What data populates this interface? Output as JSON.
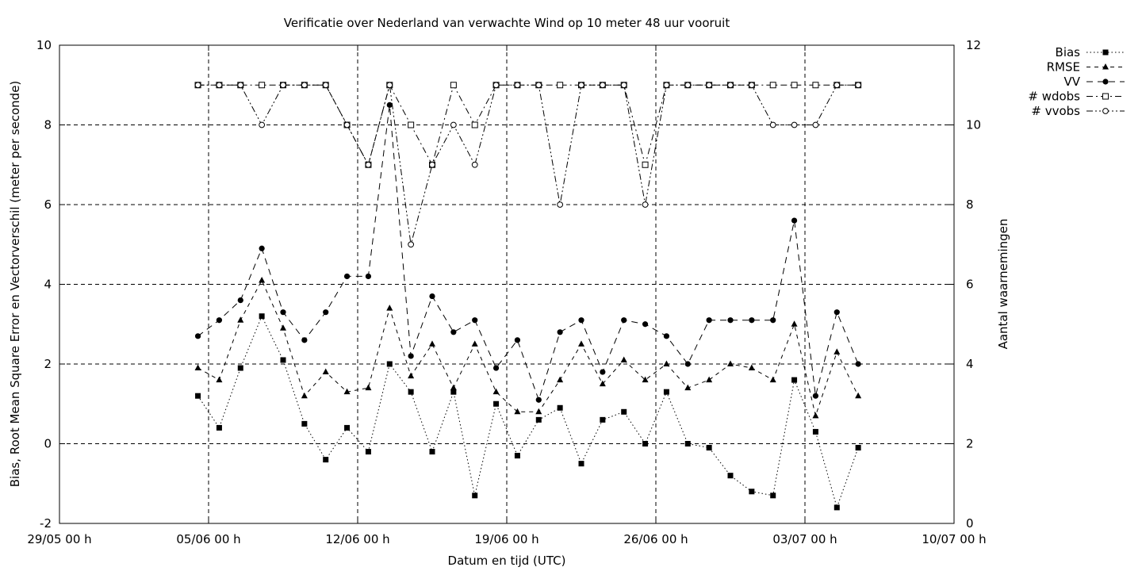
{
  "chart_data": {
    "type": "line",
    "title": "Verificatie over Nederland van verwachte Wind op 10 meter 48 uur vooruit",
    "xlabel": "Datum en tijd (UTC)",
    "ylabel": "Bias, Root Mean Square Error en Vectorverschil (meter per seconde)",
    "y2label": "Aantal waarnemingen",
    "x_axis": {
      "unit": "day",
      "ticks": [
        "29/05 00 h",
        "05/06 00 h",
        "12/06 00 h",
        "19/06 00 h",
        "26/06 00 h",
        "03/07 00 h",
        "10/07 00 h"
      ],
      "range": [
        "29/05 00 h",
        "10/07 00 h"
      ]
    },
    "ylim": [
      -2,
      10
    ],
    "yticks": [
      "-2",
      "0",
      "2",
      "4",
      "6",
      "8",
      "10"
    ],
    "y2lim": [
      0,
      12
    ],
    "y2ticks": [
      "0",
      "2",
      "4",
      "6",
      "8",
      "10",
      "12"
    ],
    "grid": true,
    "legend_position": "outside-top-right",
    "x": [
      "04/06 12 h",
      "05/06 12 h",
      "06/06 12 h",
      "07/06 12 h",
      "08/06 12 h",
      "09/06 12 h",
      "10/06 12 h",
      "11/06 12 h",
      "12/06 12 h",
      "13/06 12 h",
      "14/06 12 h",
      "15/06 12 h",
      "16/06 12 h",
      "17/06 12 h",
      "18/06 12 h",
      "19/06 12 h",
      "20/06 12 h",
      "21/06 12 h",
      "22/06 12 h",
      "23/06 12 h",
      "24/06 12 h",
      "25/06 12 h",
      "26/06 12 h",
      "27/06 12 h",
      "28/06 12 h",
      "29/06 12 h",
      "30/06 12 h",
      "01/07 12 h",
      "02/07 12 h",
      "03/07 12 h",
      "04/07 12 h",
      "05/07 12 h"
    ],
    "series": [
      {
        "name": "Bias",
        "axis": "y1",
        "style": "dotted",
        "marker": "filled-square",
        "values": [
          1.2,
          0.4,
          1.9,
          3.2,
          2.1,
          0.5,
          -0.4,
          0.4,
          -0.2,
          2.0,
          1.3,
          -0.2,
          1.3,
          -1.3,
          1.0,
          -0.3,
          0.6,
          0.9,
          -0.5,
          0.6,
          0.8,
          0.0,
          1.3,
          0.0,
          -0.1,
          -0.8,
          -1.2,
          -1.3,
          1.6,
          0.3,
          -1.6,
          -0.1
        ]
      },
      {
        "name": "RMSE",
        "axis": "y1",
        "style": "dashed",
        "marker": "filled-triangle",
        "values": [
          1.9,
          1.6,
          3.1,
          4.1,
          2.9,
          1.2,
          1.8,
          1.3,
          1.4,
          3.4,
          1.7,
          2.5,
          1.4,
          2.5,
          1.3,
          0.8,
          0.8,
          1.6,
          2.5,
          1.5,
          2.1,
          1.6,
          2.0,
          1.4,
          1.6,
          2.0,
          1.9,
          1.6,
          3.0,
          0.7,
          2.3,
          1.2
        ]
      },
      {
        "name": "VV",
        "axis": "y1",
        "style": "longdash",
        "marker": "filled-circle",
        "values": [
          2.7,
          3.1,
          3.6,
          4.9,
          3.3,
          2.6,
          3.3,
          4.2,
          4.2,
          8.5,
          2.2,
          3.7,
          2.8,
          3.1,
          1.9,
          2.6,
          1.1,
          2.8,
          3.1,
          1.8,
          3.1,
          3.0,
          2.7,
          2.0,
          3.1,
          3.1,
          3.1,
          3.1,
          5.6,
          1.2,
          3.3,
          2.0
        ]
      },
      {
        "name": "# wdobs",
        "axis": "y2",
        "style": "dashdot",
        "marker": "open-square",
        "values": [
          11,
          11,
          11,
          11,
          11,
          11,
          11,
          10,
          9,
          11,
          10,
          9,
          11,
          10,
          11,
          11,
          11,
          11,
          11,
          11,
          11,
          9,
          11,
          11,
          11,
          11,
          11,
          11,
          11,
          11,
          11,
          11
        ]
      },
      {
        "name": "# vvobs",
        "axis": "y2",
        "style": "dashdotdot",
        "marker": "open-circle",
        "values": [
          11,
          11,
          11,
          10,
          11,
          11,
          11,
          10,
          9,
          11,
          7,
          9,
          10,
          9,
          11,
          11,
          11,
          8,
          11,
          11,
          11,
          8,
          11,
          11,
          11,
          11,
          11,
          10,
          10,
          10,
          11,
          11
        ]
      }
    ]
  }
}
